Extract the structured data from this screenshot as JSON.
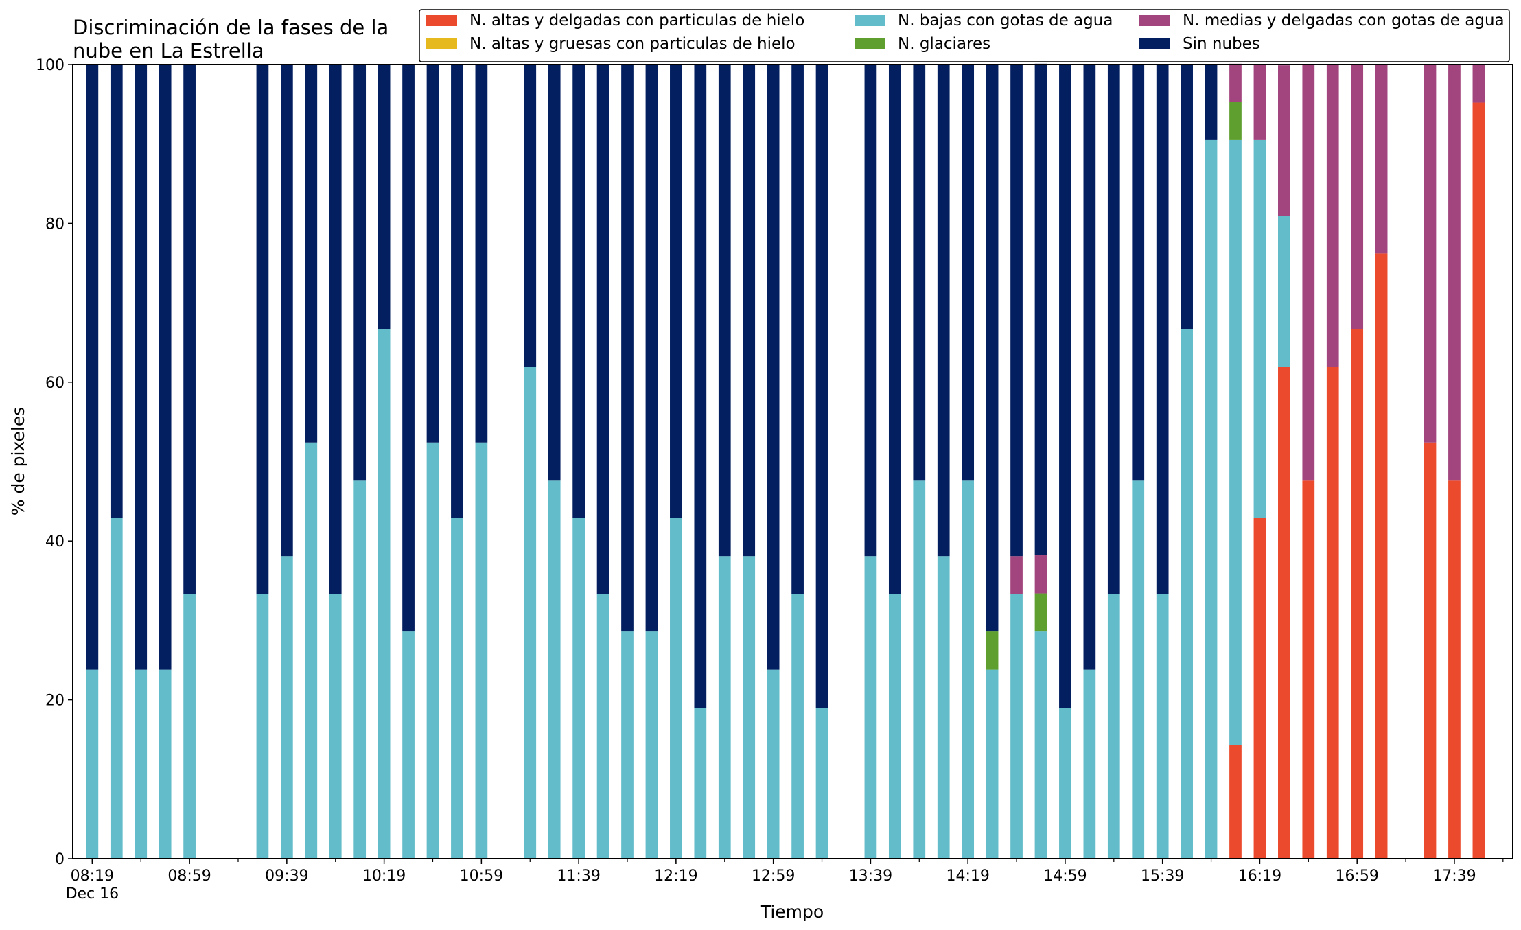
{
  "chart_data": {
    "type": "bar",
    "stacked": true,
    "title": "Discriminación de la fases de la\nnube en La Estrella",
    "xlabel": "Tiempo",
    "ylabel": "% de pixeles",
    "ylim": [
      0,
      100
    ],
    "yticks": [
      0,
      20,
      40,
      60,
      80,
      100
    ],
    "xlim": [
      "08:11",
      "18:03"
    ],
    "bar_interval_minutes": 10,
    "xticks": [
      {
        "time": "08:19",
        "label": "08:19",
        "sublabel": "Dec 16"
      },
      {
        "time": "08:59",
        "label": "08:59"
      },
      {
        "time": "09:39",
        "label": "09:39"
      },
      {
        "time": "10:19",
        "label": "10:19"
      },
      {
        "time": "10:59",
        "label": "10:59"
      },
      {
        "time": "11:39",
        "label": "11:39"
      },
      {
        "time": "12:19",
        "label": "12:19"
      },
      {
        "time": "12:59",
        "label": "12:59"
      },
      {
        "time": "13:39",
        "label": "13:39"
      },
      {
        "time": "14:19",
        "label": "14:19"
      },
      {
        "time": "14:59",
        "label": "14:59"
      },
      {
        "time": "15:39",
        "label": "15:39"
      },
      {
        "time": "16:19",
        "label": "16:19"
      },
      {
        "time": "16:59",
        "label": "16:59"
      },
      {
        "time": "17:39",
        "label": "17:39"
      }
    ],
    "legend_position": "top-right",
    "legend_columns": 3,
    "grid": false,
    "series": [
      {
        "key": "hi_thin",
        "name": "N. altas y delgadas con particulas de hielo",
        "color": "#ec4a2c"
      },
      {
        "key": "hi_thick",
        "name": "N. altas y gruesas con particulas de hielo",
        "color": "#e6b91e"
      },
      {
        "key": "low",
        "name": "N. bajas con gotas de agua",
        "color": "#63bcc9"
      },
      {
        "key": "glacier",
        "name": "N. glaciares",
        "color": "#5f9f2f"
      },
      {
        "key": "mid",
        "name": "N. medias y delgadas con gotas de agua",
        "color": "#a2457e"
      },
      {
        "key": "clear",
        "name": "Sin nubes",
        "color": "#031f60"
      }
    ],
    "stack_order": [
      "hi_thin",
      "hi_thick",
      "low",
      "glacier",
      "mid",
      "clear"
    ],
    "bars": [
      {
        "time": "08:19",
        "hi_thin": 0,
        "hi_thick": 0,
        "low": 23.8,
        "glacier": 0,
        "mid": 0,
        "clear": 76.2
      },
      {
        "time": "08:29",
        "hi_thin": 0,
        "hi_thick": 0,
        "low": 42.9,
        "glacier": 0,
        "mid": 0,
        "clear": 57.1
      },
      {
        "time": "08:39",
        "hi_thin": 0,
        "hi_thick": 0,
        "low": 23.8,
        "glacier": 0,
        "mid": 0,
        "clear": 76.2
      },
      {
        "time": "08:49",
        "hi_thin": 0,
        "hi_thick": 0,
        "low": 23.8,
        "glacier": 0,
        "mid": 0,
        "clear": 76.2
      },
      {
        "time": "08:59",
        "hi_thin": 0,
        "hi_thick": 0,
        "low": 33.3,
        "glacier": 0,
        "mid": 0,
        "clear": 66.7
      },
      {
        "time": "09:29",
        "hi_thin": 0,
        "hi_thick": 0,
        "low": 33.3,
        "glacier": 0,
        "mid": 0,
        "clear": 66.7
      },
      {
        "time": "09:39",
        "hi_thin": 0,
        "hi_thick": 0,
        "low": 38.1,
        "glacier": 0,
        "mid": 0,
        "clear": 61.9
      },
      {
        "time": "09:49",
        "hi_thin": 0,
        "hi_thick": 0,
        "low": 52.4,
        "glacier": 0,
        "mid": 0,
        "clear": 47.6
      },
      {
        "time": "09:59",
        "hi_thin": 0,
        "hi_thick": 0,
        "low": 33.3,
        "glacier": 0,
        "mid": 0,
        "clear": 66.7
      },
      {
        "time": "10:09",
        "hi_thin": 0,
        "hi_thick": 0,
        "low": 47.6,
        "glacier": 0,
        "mid": 0,
        "clear": 52.4
      },
      {
        "time": "10:19",
        "hi_thin": 0,
        "hi_thick": 0,
        "low": 66.7,
        "glacier": 0,
        "mid": 0,
        "clear": 33.3
      },
      {
        "time": "10:29",
        "hi_thin": 0,
        "hi_thick": 0,
        "low": 28.6,
        "glacier": 0,
        "mid": 0,
        "clear": 71.4
      },
      {
        "time": "10:39",
        "hi_thin": 0,
        "hi_thick": 0,
        "low": 52.4,
        "glacier": 0,
        "mid": 0,
        "clear": 47.6
      },
      {
        "time": "10:49",
        "hi_thin": 0,
        "hi_thick": 0,
        "low": 42.9,
        "glacier": 0,
        "mid": 0,
        "clear": 57.1
      },
      {
        "time": "10:59",
        "hi_thin": 0,
        "hi_thick": 0,
        "low": 52.4,
        "glacier": 0,
        "mid": 0,
        "clear": 47.6
      },
      {
        "time": "11:19",
        "hi_thin": 0,
        "hi_thick": 0,
        "low": 61.9,
        "glacier": 0,
        "mid": 0,
        "clear": 38.1
      },
      {
        "time": "11:29",
        "hi_thin": 0,
        "hi_thick": 0,
        "low": 47.6,
        "glacier": 0,
        "mid": 0,
        "clear": 52.4
      },
      {
        "time": "11:39",
        "hi_thin": 0,
        "hi_thick": 0,
        "low": 42.9,
        "glacier": 0,
        "mid": 0,
        "clear": 57.1
      },
      {
        "time": "11:49",
        "hi_thin": 0,
        "hi_thick": 0,
        "low": 33.3,
        "glacier": 0,
        "mid": 0,
        "clear": 66.7
      },
      {
        "time": "11:59",
        "hi_thin": 0,
        "hi_thick": 0,
        "low": 28.6,
        "glacier": 0,
        "mid": 0,
        "clear": 71.4
      },
      {
        "time": "12:09",
        "hi_thin": 0,
        "hi_thick": 0,
        "low": 28.6,
        "glacier": 0,
        "mid": 0,
        "clear": 71.4
      },
      {
        "time": "12:19",
        "hi_thin": 0,
        "hi_thick": 0,
        "low": 42.9,
        "glacier": 0,
        "mid": 0,
        "clear": 57.1
      },
      {
        "time": "12:29",
        "hi_thin": 0,
        "hi_thick": 0,
        "low": 19.0,
        "glacier": 0,
        "mid": 0,
        "clear": 81.0
      },
      {
        "time": "12:39",
        "hi_thin": 0,
        "hi_thick": 0,
        "low": 38.1,
        "glacier": 0,
        "mid": 0,
        "clear": 61.9
      },
      {
        "time": "12:49",
        "hi_thin": 0,
        "hi_thick": 0,
        "low": 38.1,
        "glacier": 0,
        "mid": 0,
        "clear": 61.9
      },
      {
        "time": "12:59",
        "hi_thin": 0,
        "hi_thick": 0,
        "low": 23.8,
        "glacier": 0,
        "mid": 0,
        "clear": 76.2
      },
      {
        "time": "13:09",
        "hi_thin": 0,
        "hi_thick": 0,
        "low": 33.3,
        "glacier": 0,
        "mid": 0,
        "clear": 66.7
      },
      {
        "time": "13:19",
        "hi_thin": 0,
        "hi_thick": 0,
        "low": 19.0,
        "glacier": 0,
        "mid": 0,
        "clear": 81.0
      },
      {
        "time": "13:39",
        "hi_thin": 0,
        "hi_thick": 0,
        "low": 38.1,
        "glacier": 0,
        "mid": 0,
        "clear": 61.9
      },
      {
        "time": "13:49",
        "hi_thin": 0,
        "hi_thick": 0,
        "low": 33.3,
        "glacier": 0,
        "mid": 0,
        "clear": 66.7
      },
      {
        "time": "13:59",
        "hi_thin": 0,
        "hi_thick": 0,
        "low": 47.6,
        "glacier": 0,
        "mid": 0,
        "clear": 52.4
      },
      {
        "time": "14:09",
        "hi_thin": 0,
        "hi_thick": 0,
        "low": 38.1,
        "glacier": 0,
        "mid": 0,
        "clear": 61.9
      },
      {
        "time": "14:19",
        "hi_thin": 0,
        "hi_thick": 0,
        "low": 47.6,
        "glacier": 0,
        "mid": 0,
        "clear": 52.4
      },
      {
        "time": "14:29",
        "hi_thin": 0,
        "hi_thick": 0,
        "low": 23.8,
        "glacier": 4.8,
        "mid": 0,
        "clear": 71.4
      },
      {
        "time": "14:39",
        "hi_thin": 0,
        "hi_thick": 0,
        "low": 33.3,
        "glacier": 0,
        "mid": 4.8,
        "clear": 61.9
      },
      {
        "time": "14:49",
        "hi_thin": 0,
        "hi_thick": 0,
        "low": 28.6,
        "glacier": 4.8,
        "mid": 4.8,
        "clear": 61.9
      },
      {
        "time": "14:59",
        "hi_thin": 0,
        "hi_thick": 0,
        "low": 19.0,
        "glacier": 0,
        "mid": 0,
        "clear": 81.0
      },
      {
        "time": "15:09",
        "hi_thin": 0,
        "hi_thick": 0,
        "low": 23.8,
        "glacier": 0,
        "mid": 0,
        "clear": 76.2
      },
      {
        "time": "15:19",
        "hi_thin": 0,
        "hi_thick": 0,
        "low": 33.3,
        "glacier": 0,
        "mid": 0,
        "clear": 66.7
      },
      {
        "time": "15:29",
        "hi_thin": 0,
        "hi_thick": 0,
        "low": 47.6,
        "glacier": 0,
        "mid": 0,
        "clear": 52.4
      },
      {
        "time": "15:39",
        "hi_thin": 0,
        "hi_thick": 0,
        "low": 33.3,
        "glacier": 0,
        "mid": 0,
        "clear": 66.7
      },
      {
        "time": "15:49",
        "hi_thin": 0,
        "hi_thick": 0,
        "low": 66.7,
        "glacier": 0,
        "mid": 0,
        "clear": 33.3
      },
      {
        "time": "15:59",
        "hi_thin": 0,
        "hi_thick": 0,
        "low": 90.5,
        "glacier": 0,
        "mid": 0,
        "clear": 9.5
      },
      {
        "time": "16:09",
        "hi_thin": 14.3,
        "hi_thick": 0,
        "low": 76.2,
        "glacier": 4.8,
        "mid": 4.8,
        "clear": 0
      },
      {
        "time": "16:19",
        "hi_thin": 42.9,
        "hi_thick": 0,
        "low": 47.6,
        "glacier": 0,
        "mid": 9.5,
        "clear": 0
      },
      {
        "time": "16:29",
        "hi_thin": 61.9,
        "hi_thick": 0,
        "low": 19.0,
        "glacier": 0,
        "mid": 19.0,
        "clear": 0
      },
      {
        "time": "16:39",
        "hi_thin": 47.6,
        "hi_thick": 0,
        "low": 0,
        "glacier": 0,
        "mid": 52.4,
        "clear": 0
      },
      {
        "time": "16:49",
        "hi_thin": 61.9,
        "hi_thick": 0,
        "low": 0,
        "glacier": 0,
        "mid": 38.1,
        "clear": 0
      },
      {
        "time": "16:59",
        "hi_thin": 66.7,
        "hi_thick": 0,
        "low": 0,
        "glacier": 0,
        "mid": 33.3,
        "clear": 0
      },
      {
        "time": "17:09",
        "hi_thin": 76.2,
        "hi_thick": 0,
        "low": 0,
        "glacier": 0,
        "mid": 23.8,
        "clear": 0
      },
      {
        "time": "17:29",
        "hi_thin": 52.4,
        "hi_thick": 0,
        "low": 0,
        "glacier": 0,
        "mid": 47.6,
        "clear": 0
      },
      {
        "time": "17:39",
        "hi_thin": 47.6,
        "hi_thick": 0,
        "low": 0,
        "glacier": 0,
        "mid": 52.4,
        "clear": 0
      },
      {
        "time": "17:49",
        "hi_thin": 95.2,
        "hi_thick": 0,
        "low": 0,
        "glacier": 0,
        "mid": 4.8,
        "clear": 0
      }
    ]
  }
}
